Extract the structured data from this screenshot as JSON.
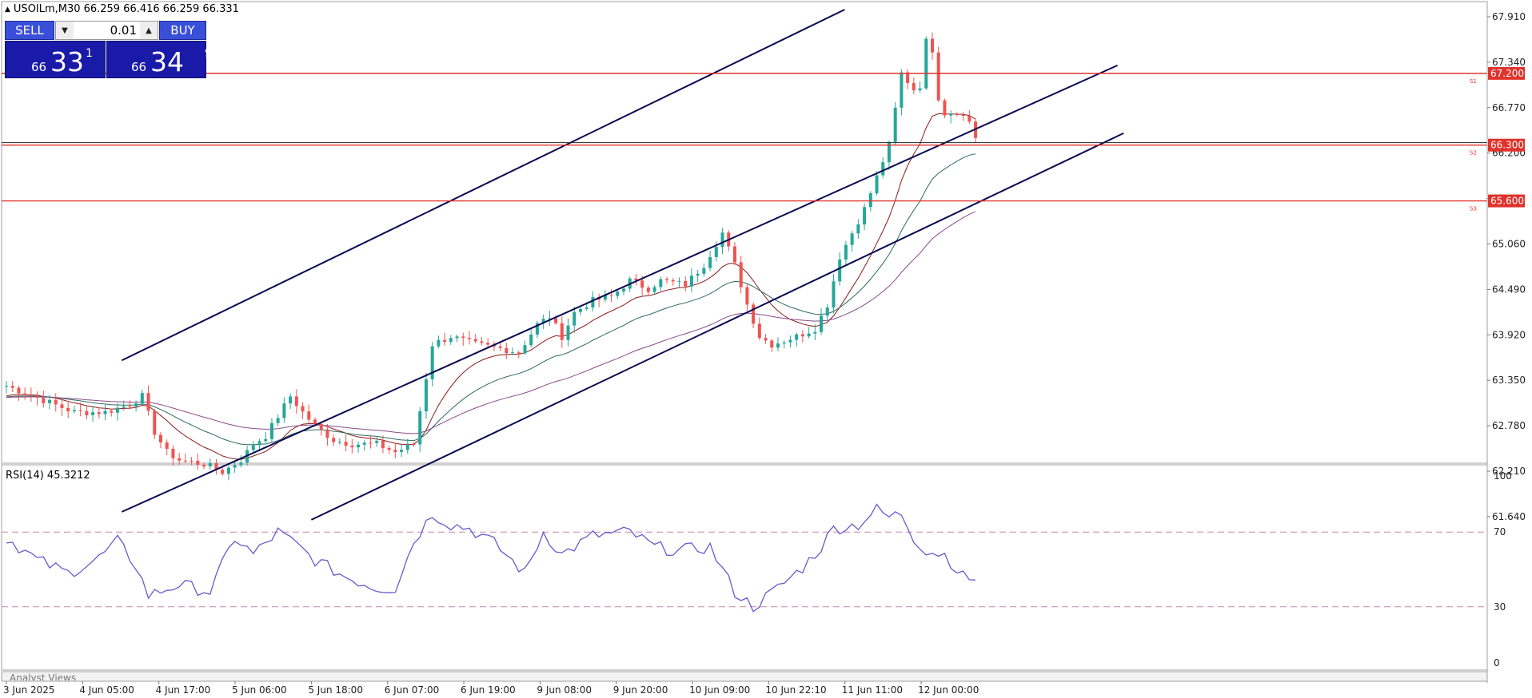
{
  "header": {
    "symbol_tf": "USOILm,M30",
    "ohlc": "66.259 66.416 66.259 66.331"
  },
  "trade_panel": {
    "sell_label": "SELL",
    "buy_label": "BUY",
    "lot": "0.01",
    "sell_prefix": "66",
    "sell_big": "33",
    "sell_sup": "1",
    "buy_prefix": "66",
    "buy_big": "34",
    "buy_sup": "9"
  },
  "price_axis": {
    "ticks": [
      "67.910",
      "67.340",
      "66.770",
      "66.200",
      "65.630",
      "65.060",
      "64.490",
      "63.920",
      "63.350",
      "62.780",
      "62.210",
      "61.640"
    ],
    "markers": [
      {
        "text": "67.200",
        "value": 67.2,
        "level_label": "S1"
      },
      {
        "text": "66.300",
        "value": 66.3,
        "level_label": "S2"
      },
      {
        "text": "65.600",
        "value": 65.6,
        "level_label": "S3"
      }
    ],
    "current": "66.331"
  },
  "rsi": {
    "label": "RSI(14) 45.3212",
    "ticks": [
      "100",
      "70",
      "30",
      "0"
    ],
    "levels": [
      70,
      30
    ]
  },
  "time_axis": [
    "3 Jun 2025",
    "4 Jun 05:00",
    "4 Jun 17:00",
    "5 Jun 06:00",
    "5 Jun 18:00",
    "6 Jun 07:00",
    "6 Jun 19:00",
    "9 Jun 08:00",
    "9 Jun 20:00",
    "10 Jun 09:00",
    "10 Jun 22:10",
    "11 Jun 11:00",
    "12 Jun 00:00"
  ],
  "analyst_views": "Analyst Views",
  "colors": {
    "bull": "#26a69a",
    "bear": "#ef5350",
    "channel": "#0a0a52",
    "support": "#e0332d",
    "ma_fast": "#8b1a1a",
    "ma_mid": "#2e6b5e",
    "ma_slow": "#8a4a8a",
    "rsi": "#6a5acd",
    "marker_bg": "#e0332d"
  },
  "chart_data": {
    "type": "candlestick",
    "price_anchors": [
      [
        0,
        63.28
      ],
      [
        6,
        63.1
      ],
      [
        11,
        62.95
      ],
      [
        16,
        62.95
      ],
      [
        20,
        63.05
      ],
      [
        22,
        63.15
      ],
      [
        24,
        62.7
      ],
      [
        26,
        62.45
      ],
      [
        28,
        62.35
      ],
      [
        32,
        62.3
      ],
      [
        35,
        62.2
      ],
      [
        38,
        62.35
      ],
      [
        40,
        62.55
      ],
      [
        42,
        62.65
      ],
      [
        46,
        63.15
      ],
      [
        48,
        62.95
      ],
      [
        50,
        62.78
      ],
      [
        53,
        62.6
      ],
      [
        56,
        62.55
      ],
      [
        60,
        62.55
      ],
      [
        63,
        62.45
      ],
      [
        66,
        62.55
      ],
      [
        69,
        63.8
      ],
      [
        72,
        63.9
      ],
      [
        76,
        63.8
      ],
      [
        80,
        63.75
      ],
      [
        83,
        63.7
      ],
      [
        86,
        64.05
      ],
      [
        88,
        64.15
      ],
      [
        90,
        63.9
      ],
      [
        92,
        64.2
      ],
      [
        95,
        64.35
      ],
      [
        98,
        64.4
      ],
      [
        101,
        64.6
      ],
      [
        104,
        64.5
      ],
      [
        106,
        64.6
      ],
      [
        110,
        64.55
      ],
      [
        113,
        64.8
      ],
      [
        116,
        65.2
      ],
      [
        118,
        64.8
      ],
      [
        120,
        64.3
      ],
      [
        122,
        63.9
      ],
      [
        124,
        63.8
      ],
      [
        126,
        63.85
      ],
      [
        128,
        63.9
      ],
      [
        131,
        64.0
      ],
      [
        133,
        64.3
      ],
      [
        135,
        64.9
      ],
      [
        137,
        65.2
      ],
      [
        139,
        65.5
      ],
      [
        141,
        65.9
      ],
      [
        143,
        66.3
      ],
      [
        145,
        67.2
      ],
      [
        147,
        67.0
      ],
      [
        148,
        67.05
      ],
      [
        149,
        67.6
      ],
      [
        150,
        67.5
      ],
      [
        151,
        66.9
      ],
      [
        152,
        66.7
      ],
      [
        154,
        66.72
      ],
      [
        156,
        66.6
      ],
      [
        157,
        66.4
      ]
    ],
    "rsi_anchors": [
      [
        0,
        67
      ],
      [
        5,
        55
      ],
      [
        10,
        48
      ],
      [
        15,
        56
      ],
      [
        18,
        65
      ],
      [
        21,
        52
      ],
      [
        23,
        36
      ],
      [
        28,
        42
      ],
      [
        33,
        38
      ],
      [
        37,
        67
      ],
      [
        40,
        58
      ],
      [
        44,
        70
      ],
      [
        47,
        63
      ],
      [
        50,
        55
      ],
      [
        55,
        46
      ],
      [
        60,
        40
      ],
      [
        63,
        40
      ],
      [
        66,
        65
      ],
      [
        69,
        80
      ],
      [
        72,
        74
      ],
      [
        75,
        72
      ],
      [
        79,
        64
      ],
      [
        84,
        48
      ],
      [
        87,
        70
      ],
      [
        90,
        58
      ],
      [
        95,
        68
      ],
      [
        101,
        70
      ],
      [
        105,
        62
      ],
      [
        109,
        60
      ],
      [
        114,
        62
      ],
      [
        118,
        38
      ],
      [
        121,
        30
      ],
      [
        125,
        40
      ],
      [
        129,
        51
      ],
      [
        132,
        62
      ],
      [
        134,
        72
      ],
      [
        138,
        74
      ],
      [
        141,
        82
      ],
      [
        143,
        78
      ],
      [
        145,
        80
      ],
      [
        147,
        67
      ],
      [
        149,
        60
      ],
      [
        152,
        58
      ],
      [
        155,
        46
      ],
      [
        157,
        45
      ]
    ],
    "channels": [
      {
        "from": [
          "4 Jun 14:00",
          63.6
        ],
        "to": [
          "11 Jun 20:00",
          68.0
        ]
      },
      {
        "from": [
          "4 Jun 14:00",
          61.7
        ],
        "to": [
          "12 Jun 05:00",
          67.3
        ]
      },
      {
        "from": [
          "5 Jun 18:00",
          61.6
        ],
        "to": [
          "12 Jun 08:00",
          66.45
        ]
      }
    ]
  }
}
